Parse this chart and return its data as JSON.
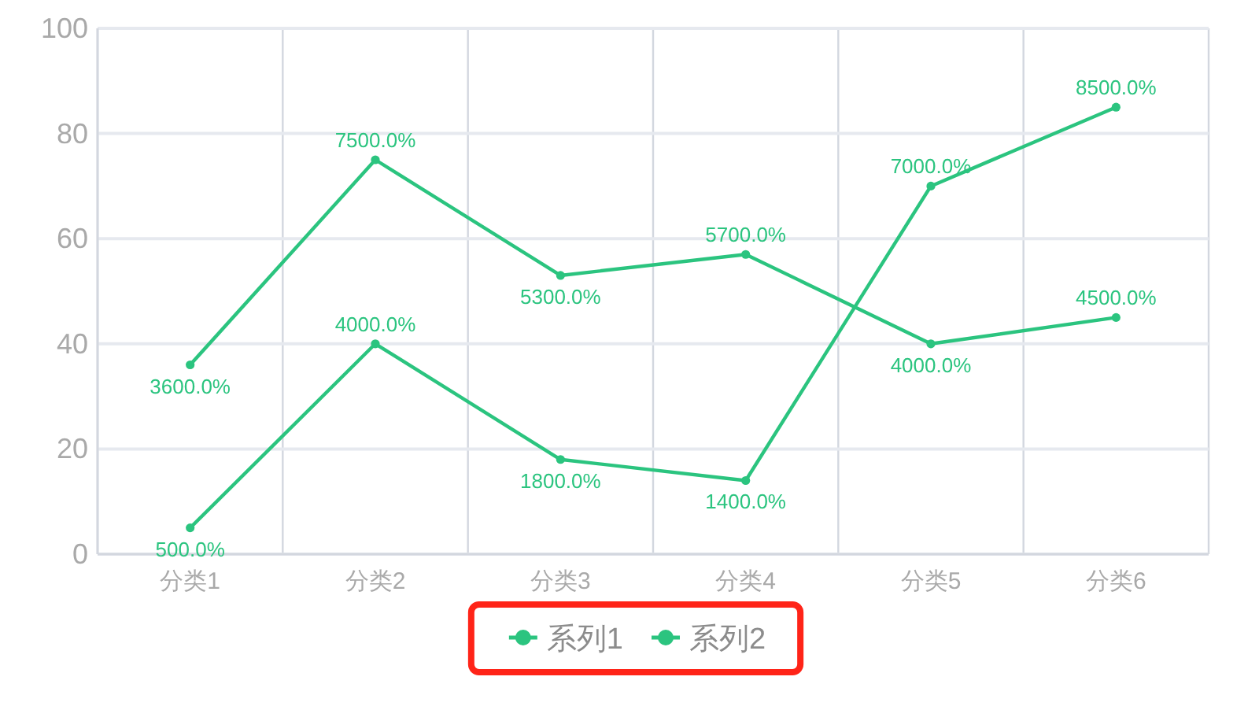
{
  "chart_data": {
    "type": "line",
    "categories": [
      "分类1",
      "分类2",
      "分类3",
      "分类4",
      "分类5",
      "分类6"
    ],
    "series": [
      {
        "name": "系列1",
        "color": "#2bc47f",
        "values": [
          36,
          75,
          53,
          57,
          40,
          45
        ],
        "value_labels": [
          "3600.0%",
          "7500.0%",
          "5300.0%",
          "5700.0%",
          "4000.0%",
          "4500.0%"
        ]
      },
      {
        "name": "系列2",
        "color": "#2bc47f",
        "values": [
          5,
          40,
          18,
          14,
          70,
          85
        ],
        "value_labels": [
          "500.0%",
          "4000.0%",
          "1800.0%",
          "1400.0%",
          "7000.0%",
          "8500.0%"
        ]
      }
    ],
    "ylim": [
      0,
      100
    ],
    "yticks": [
      0,
      20,
      40,
      60,
      80,
      100
    ],
    "grid": true,
    "legend": "bottom",
    "marker": "circle",
    "line_style": "solid"
  }
}
